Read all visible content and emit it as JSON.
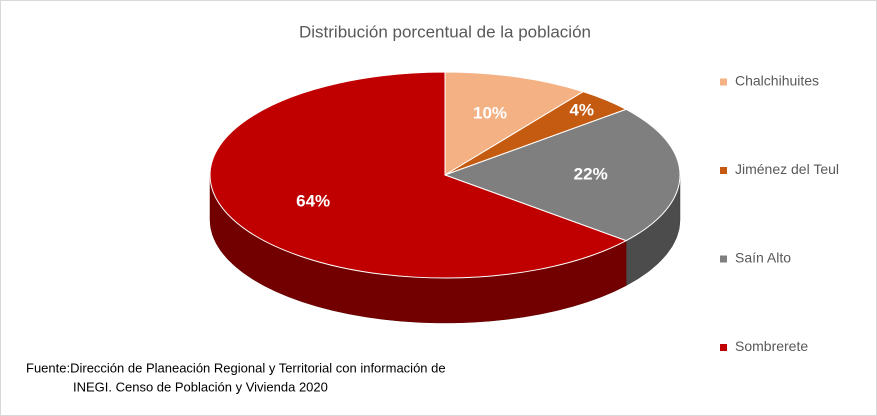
{
  "chart_data": {
    "type": "pie3d",
    "title": "Distribución porcentual de la población",
    "categories": [
      "Chalchihuites",
      "Jiménez del Teul",
      "Saín Alto",
      "Sombrerete"
    ],
    "values": [
      10,
      4,
      22,
      64
    ],
    "value_labels": [
      "10%",
      "4%",
      "22%",
      "64%"
    ],
    "colors": [
      "#f4b183",
      "#c55a11",
      "#7f7f7f",
      "#c00000"
    ],
    "legend": "right",
    "source": [
      "Fuente:Dirección de Planeación Regional y Territorial con información de",
      "INEGI. Censo de Población y Vivienda 2020"
    ]
  }
}
